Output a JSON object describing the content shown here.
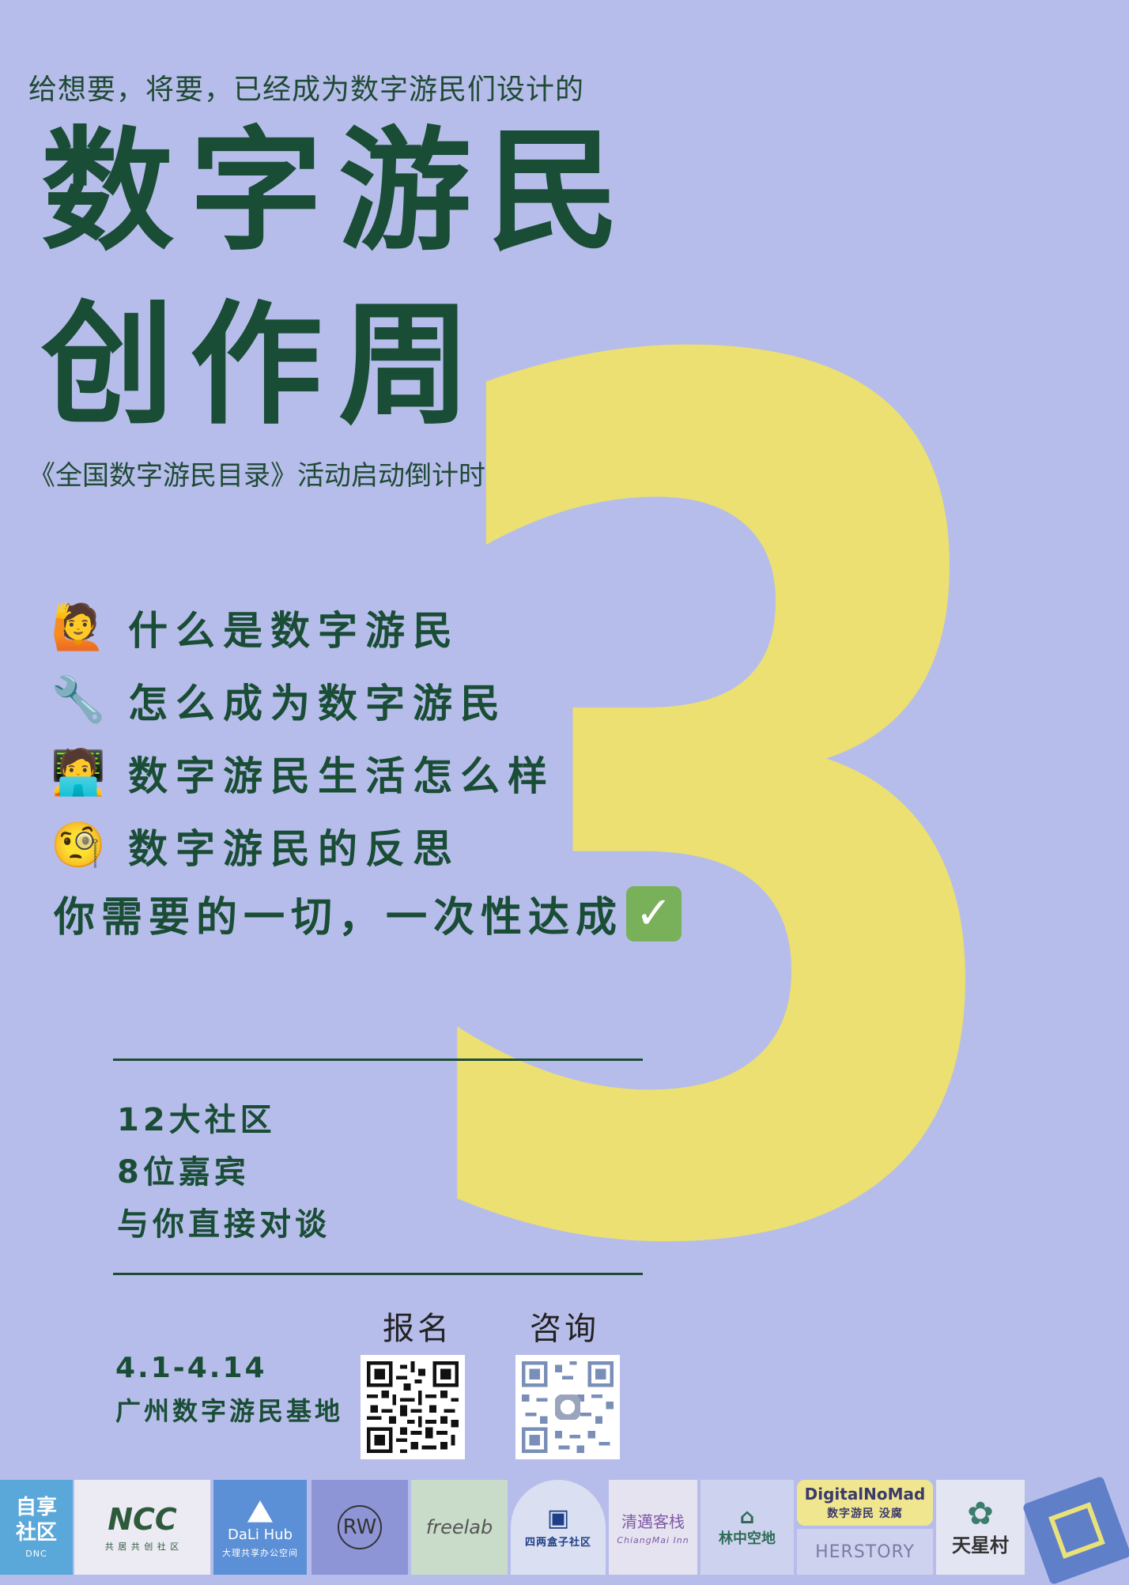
{
  "tagline": "给想要，将要，已经成为数字游民们设计的",
  "title_line1": "数字游民",
  "title_line2": "创作周",
  "subtitle": "《全国数字游民目录》活动启动倒计时",
  "countdown": "3",
  "features": [
    {
      "icon": "🙋",
      "icon_name": "person-raising-hand-icon",
      "text": "什么是数字游民"
    },
    {
      "icon": "🔧",
      "icon_name": "wrench-icon",
      "text": "怎么成为数字游民"
    },
    {
      "icon": "🧑‍💻",
      "icon_name": "technologist-icon",
      "text": "数字游民生活怎么样"
    },
    {
      "icon": "🧐",
      "icon_name": "monocle-face-icon",
      "text": "数字游民的反思"
    }
  ],
  "summary": "你需要的一切，一次性达成",
  "summary_check": "✓",
  "stats": [
    "12大社区",
    "8位嘉宾",
    "与你直接对谈"
  ],
  "signup_label": "报名",
  "consult_label": "咨询",
  "date": "4.1-4.14",
  "venue": "广州数字游民基地",
  "logos": [
    {
      "main": "自享\n社区",
      "sub": "DNC"
    },
    {
      "main": "NCC",
      "sub": "共 居 共 创 社 区"
    },
    {
      "main": "DaLi Hub",
      "sub": "大理共享办公空间"
    },
    {
      "main": "RW",
      "sub": ""
    },
    {
      "main": "freelab",
      "sub": ""
    },
    {
      "main": "四两盒子社区",
      "sub": ""
    },
    {
      "main": "清邁客栈",
      "sub": "ChiangMai Inn"
    },
    {
      "main": "林中空地",
      "sub": ""
    },
    {
      "main": "DigitalNoMad",
      "sub": "数字游民 没腐"
    },
    {
      "main": "天星村",
      "sub": ""
    },
    {
      "main": "HERSTORY",
      "sub": ""
    }
  ],
  "colors": {
    "background": "#b7bdea",
    "accent_yellow": "#ebe071",
    "text_green": "#194d36",
    "check_green": "#78b159"
  }
}
